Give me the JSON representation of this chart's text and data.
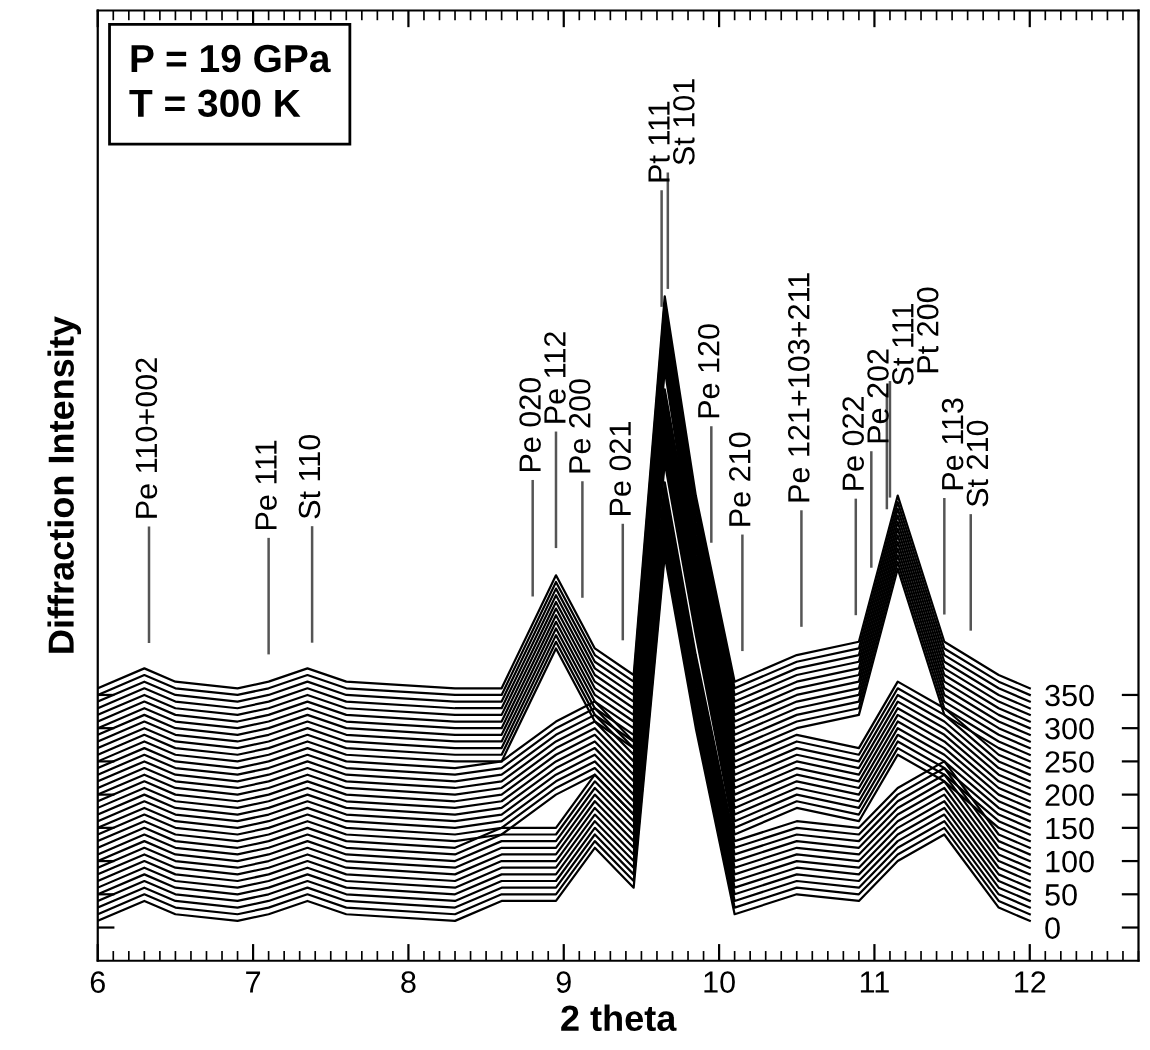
{
  "chart_data": {
    "type": "line",
    "xlabel": "2 theta",
    "ylabel": "Diffraction Intensity",
    "xlim": [
      6,
      12.7
    ],
    "xticks": [
      6,
      7,
      8,
      9,
      10,
      11,
      12
    ],
    "ylim": [
      -50,
      1380
    ],
    "yticks": [
      0,
      50,
      100,
      150,
      200,
      250,
      300,
      350
    ],
    "x": [
      6.0,
      6.3,
      6.5,
      6.9,
      7.1,
      7.35,
      7.6,
      8.3,
      8.6,
      8.95,
      9.2,
      9.45,
      9.65,
      9.85,
      10.1,
      10.5,
      10.9,
      11.15,
      11.45,
      11.8,
      12.0
    ],
    "annotations": [
      "P = 19 GPa",
      "T = 300 K"
    ],
    "ref_lines": [
      {
        "axis": "x",
        "value": 6.33,
        "label": "Pe 110+002"
      },
      {
        "axis": "x",
        "value": 7.1,
        "label": "Pe 111"
      },
      {
        "axis": "x",
        "value": 7.38,
        "label": "St 110"
      },
      {
        "axis": "x",
        "value": 8.8,
        "label": "Pe 020"
      },
      {
        "axis": "x",
        "value": 8.95,
        "label": "Pe 112"
      },
      {
        "axis": "x",
        "value": 9.12,
        "label": "Pe 200"
      },
      {
        "axis": "x",
        "value": 9.38,
        "label": "Pe 021"
      },
      {
        "axis": "x",
        "value": 9.63,
        "label": "Pt 111"
      },
      {
        "axis": "x",
        "value": 9.67,
        "label": "St 101"
      },
      {
        "axis": "x",
        "value": 9.95,
        "label": "Pe 120"
      },
      {
        "axis": "x",
        "value": 10.15,
        "label": "Pe 210"
      },
      {
        "axis": "x",
        "value": 10.53,
        "label": "Pe 121+103+211"
      },
      {
        "axis": "x",
        "value": 10.88,
        "label": "Pe 022"
      },
      {
        "axis": "x",
        "value": 10.98,
        "label": "Pe 202"
      },
      {
        "axis": "x",
        "value": 11.08,
        "label": "St 111"
      },
      {
        "axis": "x",
        "value": 11.1,
        "label": "Pt 200"
      },
      {
        "axis": "x",
        "value": 11.45,
        "label": "Pe 113"
      },
      {
        "axis": "x",
        "value": 11.62,
        "label": "St 210"
      }
    ],
    "series": [
      {
        "color": "#000000",
        "values": [
          10,
          40,
          20,
          10,
          20,
          40,
          20,
          10,
          40,
          40,
          120,
          60,
          560,
          300,
          20,
          50,
          40,
          100,
          140,
          30,
          10
        ]
      },
      {
        "color": "#000000",
        "values": [
          20,
          50,
          30,
          20,
          30,
          50,
          30,
          20,
          50,
          50,
          130,
          70,
          570,
          310,
          30,
          60,
          50,
          110,
          150,
          40,
          20
        ]
      },
      {
        "color": "#000000",
        "values": [
          30,
          60,
          40,
          30,
          40,
          60,
          40,
          30,
          60,
          60,
          140,
          80,
          580,
          320,
          40,
          70,
          60,
          120,
          160,
          50,
          30
        ]
      },
      {
        "color": "#000000",
        "values": [
          40,
          70,
          50,
          40,
          50,
          70,
          50,
          40,
          70,
          70,
          150,
          90,
          590,
          330,
          50,
          80,
          70,
          130,
          170,
          60,
          40
        ]
      },
      {
        "color": "#000000",
        "values": [
          50,
          80,
          60,
          50,
          60,
          80,
          60,
          50,
          80,
          80,
          160,
          100,
          600,
          340,
          60,
          90,
          80,
          140,
          180,
          70,
          50
        ]
      },
      {
        "color": "#000000",
        "values": [
          60,
          90,
          70,
          60,
          70,
          90,
          70,
          60,
          90,
          90,
          170,
          110,
          610,
          350,
          70,
          100,
          90,
          150,
          190,
          80,
          60
        ]
      },
      {
        "color": "#000000",
        "values": [
          70,
          100,
          80,
          70,
          80,
          100,
          80,
          70,
          100,
          100,
          180,
          120,
          620,
          360,
          80,
          110,
          100,
          160,
          200,
          90,
          70
        ]
      },
      {
        "color": "#000000",
        "values": [
          80,
          110,
          90,
          80,
          90,
          110,
          90,
          80,
          110,
          110,
          190,
          130,
          630,
          370,
          90,
          120,
          110,
          170,
          210,
          100,
          80
        ]
      },
      {
        "color": "#000000",
        "values": [
          90,
          120,
          100,
          90,
          100,
          120,
          100,
          90,
          120,
          120,
          200,
          140,
          640,
          380,
          100,
          130,
          120,
          180,
          220,
          110,
          90
        ]
      },
      {
        "color": "#000000",
        "values": [
          100,
          130,
          110,
          100,
          110,
          130,
          110,
          100,
          130,
          130,
          210,
          150,
          650,
          390,
          110,
          140,
          130,
          190,
          230,
          120,
          100
        ]
      },
      {
        "color": "#000000",
        "values": [
          110,
          140,
          120,
          110,
          120,
          140,
          120,
          110,
          140,
          140,
          220,
          160,
          660,
          400,
          120,
          150,
          140,
          200,
          240,
          130,
          110
        ]
      },
      {
        "color": "#000000",
        "values": [
          120,
          150,
          130,
          120,
          130,
          150,
          130,
          120,
          150,
          150,
          230,
          170,
          670,
          410,
          130,
          160,
          150,
          210,
          250,
          140,
          120
        ]
      },
      {
        "color": "#000000",
        "values": [
          130,
          160,
          140,
          130,
          140,
          160,
          140,
          130,
          140,
          200,
          230,
          170,
          700,
          440,
          140,
          180,
          160,
          260,
          220,
          150,
          130
        ]
      },
      {
        "color": "#000000",
        "values": [
          140,
          170,
          150,
          140,
          150,
          170,
          150,
          140,
          150,
          210,
          240,
          180,
          710,
          450,
          150,
          190,
          170,
          270,
          230,
          160,
          140
        ]
      },
      {
        "color": "#000000",
        "values": [
          150,
          180,
          160,
          150,
          160,
          180,
          160,
          150,
          160,
          220,
          250,
          190,
          720,
          460,
          160,
          200,
          180,
          280,
          240,
          170,
          150
        ]
      },
      {
        "color": "#000000",
        "values": [
          160,
          190,
          170,
          160,
          170,
          190,
          170,
          160,
          170,
          230,
          260,
          200,
          730,
          470,
          170,
          210,
          190,
          290,
          250,
          180,
          160
        ]
      },
      {
        "color": "#000000",
        "values": [
          170,
          200,
          180,
          170,
          180,
          200,
          180,
          170,
          180,
          240,
          270,
          210,
          740,
          480,
          180,
          220,
          200,
          300,
          260,
          190,
          170
        ]
      },
      {
        "color": "#000000",
        "values": [
          180,
          210,
          190,
          180,
          190,
          210,
          190,
          180,
          190,
          250,
          280,
          220,
          750,
          490,
          190,
          230,
          210,
          310,
          270,
          200,
          180
        ]
      },
      {
        "color": "#000000",
        "values": [
          190,
          220,
          200,
          190,
          200,
          220,
          200,
          190,
          200,
          260,
          290,
          230,
          760,
          500,
          200,
          240,
          220,
          320,
          280,
          210,
          190
        ]
      },
      {
        "color": "#000000",
        "values": [
          200,
          230,
          210,
          200,
          210,
          230,
          210,
          200,
          210,
          270,
          300,
          240,
          770,
          510,
          210,
          250,
          230,
          330,
          290,
          220,
          200
        ]
      },
      {
        "color": "#000000",
        "values": [
          210,
          240,
          220,
          210,
          220,
          240,
          220,
          210,
          220,
          280,
          310,
          250,
          780,
          520,
          220,
          260,
          240,
          340,
          300,
          230,
          210
        ]
      },
      {
        "color": "#000000",
        "values": [
          220,
          250,
          230,
          220,
          230,
          250,
          230,
          220,
          230,
          290,
          320,
          260,
          790,
          530,
          230,
          270,
          250,
          350,
          310,
          240,
          220
        ]
      },
      {
        "color": "#000000",
        "values": [
          230,
          260,
          240,
          230,
          240,
          260,
          240,
          230,
          240,
          300,
          330,
          270,
          800,
          540,
          240,
          280,
          260,
          360,
          320,
          250,
          230
        ]
      },
      {
        "color": "#000000",
        "values": [
          240,
          270,
          250,
          240,
          250,
          270,
          250,
          240,
          250,
          310,
          340,
          280,
          810,
          550,
          250,
          290,
          270,
          370,
          330,
          260,
          240
        ]
      },
      {
        "color": "#000000",
        "values": [
          250,
          280,
          260,
          250,
          260,
          280,
          260,
          250,
          250,
          420,
          310,
          270,
          840,
          540,
          260,
          300,
          320,
          540,
          320,
          270,
          250
        ]
      },
      {
        "color": "#000000",
        "values": [
          260,
          290,
          270,
          260,
          270,
          290,
          270,
          260,
          260,
          430,
          320,
          280,
          850,
          550,
          270,
          310,
          330,
          550,
          330,
          280,
          260
        ]
      },
      {
        "color": "#000000",
        "values": [
          270,
          300,
          280,
          270,
          280,
          300,
          280,
          270,
          270,
          440,
          330,
          290,
          860,
          560,
          280,
          320,
          340,
          560,
          340,
          290,
          270
        ]
      },
      {
        "color": "#000000",
        "values": [
          280,
          310,
          290,
          280,
          290,
          310,
          290,
          280,
          280,
          450,
          340,
          300,
          870,
          570,
          290,
          330,
          350,
          570,
          350,
          300,
          280
        ]
      },
      {
        "color": "#000000",
        "values": [
          290,
          320,
          300,
          290,
          300,
          320,
          300,
          290,
          290,
          460,
          350,
          310,
          880,
          580,
          300,
          340,
          360,
          580,
          360,
          310,
          290
        ]
      },
      {
        "color": "#000000",
        "values": [
          300,
          330,
          310,
          300,
          310,
          330,
          310,
          300,
          300,
          470,
          360,
          320,
          890,
          590,
          310,
          350,
          370,
          590,
          370,
          320,
          300
        ]
      },
      {
        "color": "#000000",
        "values": [
          310,
          340,
          320,
          310,
          320,
          340,
          320,
          310,
          310,
          480,
          370,
          330,
          900,
          600,
          320,
          360,
          380,
          600,
          380,
          330,
          310
        ]
      },
      {
        "color": "#000000",
        "values": [
          320,
          350,
          330,
          320,
          330,
          350,
          330,
          320,
          320,
          490,
          380,
          340,
          910,
          610,
          330,
          370,
          390,
          610,
          390,
          340,
          320
        ]
      },
      {
        "color": "#000000",
        "values": [
          330,
          360,
          340,
          330,
          340,
          360,
          340,
          330,
          330,
          500,
          390,
          350,
          920,
          620,
          340,
          380,
          400,
          620,
          400,
          350,
          330
        ]
      },
      {
        "color": "#000000",
        "values": [
          340,
          370,
          350,
          340,
          350,
          370,
          350,
          340,
          340,
          510,
          400,
          360,
          930,
          630,
          350,
          390,
          410,
          630,
          410,
          360,
          340
        ]
      },
      {
        "color": "#000000",
        "values": [
          350,
          380,
          360,
          350,
          360,
          380,
          360,
          350,
          350,
          520,
          410,
          370,
          940,
          640,
          360,
          400,
          420,
          640,
          420,
          370,
          350
        ]
      },
      {
        "color": "#000000",
        "values": [
          360,
          390,
          370,
          360,
          370,
          390,
          370,
          360,
          360,
          530,
          420,
          380,
          950,
          650,
          370,
          410,
          430,
          650,
          430,
          380,
          360
        ]
      }
    ]
  }
}
